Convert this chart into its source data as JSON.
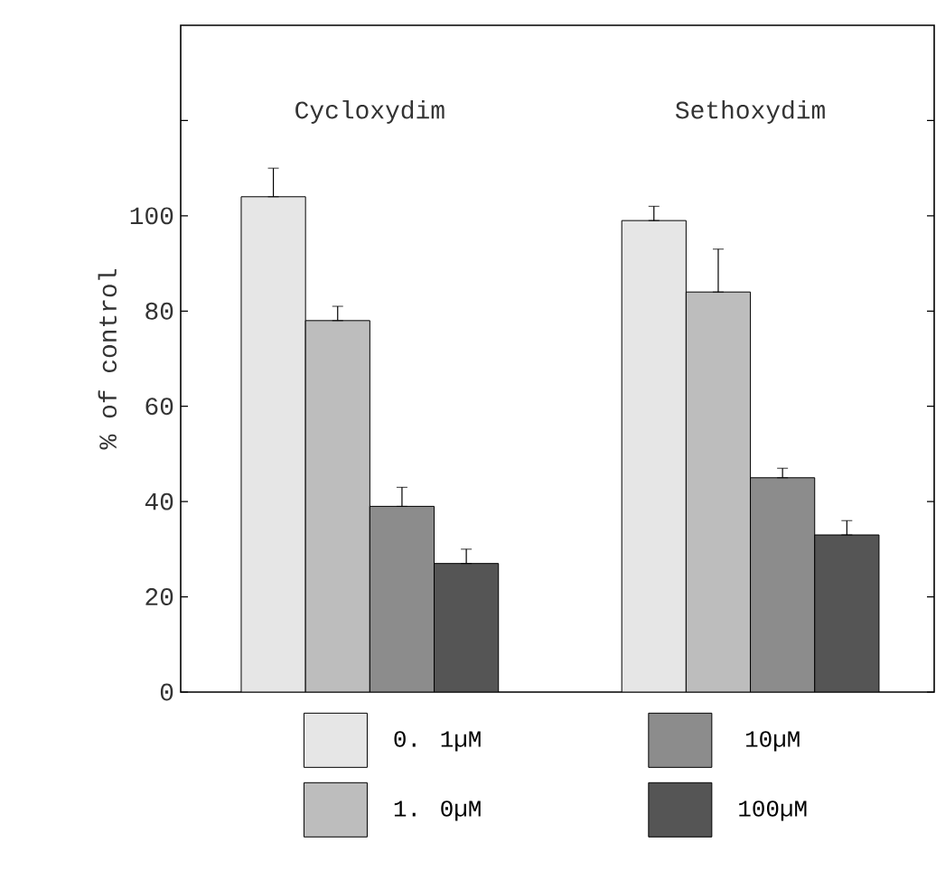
{
  "chart_data": {
    "type": "bar",
    "ylabel": "% of control",
    "categories": [
      "Cycloxydim",
      "Sethoxydim"
    ],
    "series": [
      {
        "name": "0. 1µM",
        "color": "#e6e6e6",
        "values": [
          104,
          99
        ],
        "errors": [
          [
            104,
            110
          ],
          [
            99,
            102
          ]
        ]
      },
      {
        "name": "1. 0µM",
        "color": "#bdbdbd",
        "values": [
          78,
          84
        ],
        "errors": [
          [
            78,
            81
          ],
          [
            84,
            93
          ]
        ]
      },
      {
        "name": "10µM",
        "color": "#8c8c8c",
        "values": [
          39,
          45
        ],
        "errors": [
          [
            39,
            43
          ],
          [
            45,
            47
          ]
        ]
      },
      {
        "name": "100µM",
        "color": "#555555",
        "values": [
          27,
          33
        ],
        "errors": [
          [
            27,
            30
          ],
          [
            33,
            36
          ]
        ]
      }
    ],
    "ylim": [
      0,
      140
    ],
    "yticks": [
      0,
      20,
      40,
      60,
      80,
      100,
      {
        "value": 120,
        "label": null
      }
    ],
    "legend": "bottom",
    "grid": false
  }
}
